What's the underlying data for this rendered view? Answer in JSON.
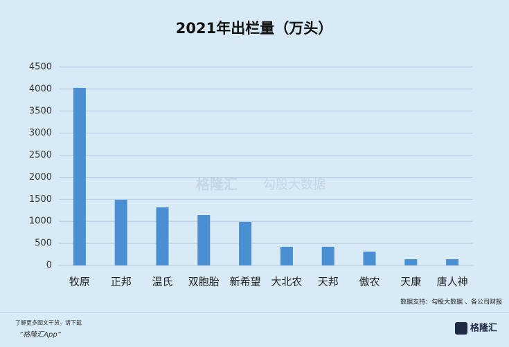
{
  "chart_data": {
    "type": "bar",
    "title": "2021年出栏量（万头）",
    "categories": [
      "牧原",
      "正邦",
      "温氏",
      "双胞胎",
      "新希望",
      "大北农",
      "天邦",
      "傲农",
      "天康",
      "唐人神"
    ],
    "values": [
      4029,
      1489,
      1317,
      1144,
      988,
      423,
      423,
      313,
      141,
      141
    ],
    "color": "#4a8fd2",
    "ylim": [
      0,
      4500
    ],
    "yticks": [
      0,
      500,
      1000,
      1500,
      2000,
      2500,
      3000,
      3500,
      4000,
      4500
    ],
    "grid": true,
    "source": "数据支持：勾股大数据 、各公司财报",
    "watermark": [
      "格隆汇",
      "勾股大数据"
    ],
    "footer": {
      "line1": "了解更多图文干货，请下载",
      "line2": "“格隆汇App”",
      "logo": "格隆汇"
    }
  }
}
